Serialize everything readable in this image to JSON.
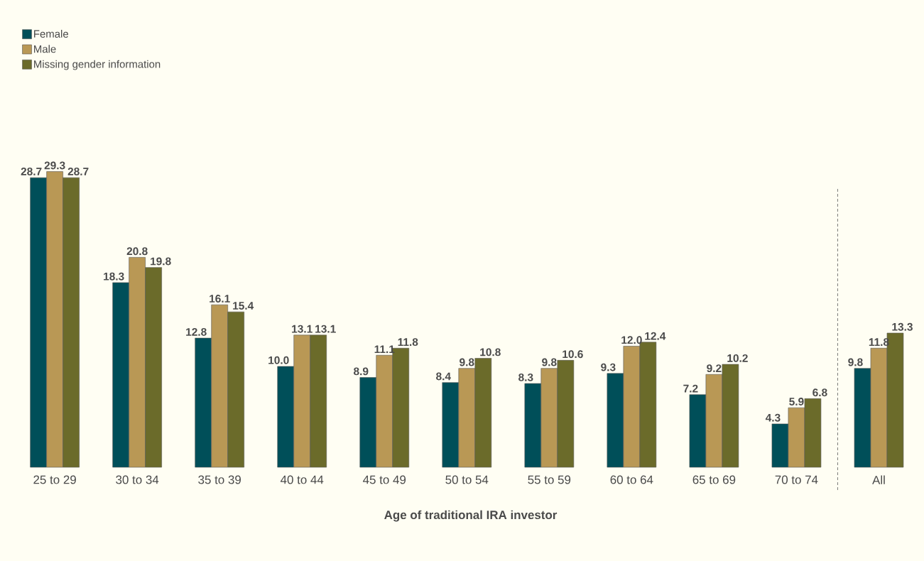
{
  "chart_data": {
    "type": "bar",
    "xlabel": "Age of traditional IRA investor",
    "categories": [
      "25 to 29",
      "30 to 34",
      "35 to 39",
      "40 to 44",
      "45 to 49",
      "50 to 54",
      "55 to 59",
      "60 to 64",
      "65 to 69",
      "70 to 74",
      "All"
    ],
    "series": [
      {
        "name": "Female",
        "color": "#004f59",
        "values": [
          28.7,
          18.3,
          12.8,
          10.0,
          8.9,
          8.4,
          8.3,
          9.3,
          7.2,
          4.3,
          9.8
        ],
        "value_labels": [
          "28.7",
          "18.3",
          "12.8",
          "10.0",
          "8.9",
          "8.4",
          "8.3",
          "9.3",
          "7.2",
          "4.3",
          "9.8"
        ]
      },
      {
        "name": "Male",
        "color": "#b99855",
        "values": [
          29.3,
          20.8,
          16.1,
          13.1,
          11.1,
          9.8,
          9.8,
          12.0,
          9.2,
          5.9,
          11.8
        ],
        "value_labels": [
          "29.3",
          "20.8",
          "16.1",
          "13.1",
          "11.1",
          "9.8",
          "9.8",
          "12.0",
          "9.2",
          "5.9",
          "11.8"
        ]
      },
      {
        "name": "Missing gender information",
        "color": "#6b6b2a",
        "values": [
          28.7,
          19.8,
          15.4,
          13.1,
          11.8,
          10.8,
          10.6,
          12.4,
          10.2,
          6.8,
          13.3
        ],
        "value_labels": [
          "28.7",
          "19.8",
          "15.4",
          "13.1",
          "11.8",
          "10.8",
          "10.6",
          "12.4",
          "10.2",
          "6.8",
          "13.3"
        ]
      }
    ],
    "legend": "top left"
  }
}
